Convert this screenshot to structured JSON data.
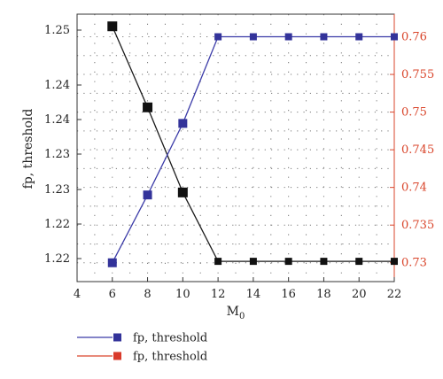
{
  "chart_data": {
    "type": "line",
    "xlabel": "M",
    "xlabel_sub": "0",
    "ylabel": "fp, threshold",
    "xlim": [
      4,
      22
    ],
    "x_ticks": [
      "4",
      "6",
      "8",
      "10",
      "12",
      "14",
      "16",
      "18",
      "20",
      "22"
    ],
    "y_left_ticks": [
      "1.22",
      "1.22",
      "1.23",
      "1.23",
      "1.24",
      "1.24",
      "1.25"
    ],
    "y_left_lim": [
      1.2175,
      1.2505
    ],
    "y_right_ticks": [
      "0.73",
      "0.735",
      "0.74",
      "0.745",
      "0.75",
      "0.755",
      "0.76"
    ],
    "y_right_lim": [
      0.7275,
      0.763
    ],
    "grid": true,
    "legend_position": "bottom-left",
    "series": [
      {
        "name": "fp, threshold",
        "axis": "left",
        "color": "#1a1a1a",
        "marker_color": "#111111",
        "x": [
          6,
          8,
          10,
          12,
          14,
          16,
          18,
          20,
          22
        ],
        "y": [
          1.249,
          1.239,
          1.2285,
          1.22,
          1.22,
          1.22,
          1.22,
          1.22,
          1.22
        ]
      },
      {
        "name": "fp, threshold",
        "axis": "right",
        "color": "#3b3ba8",
        "marker_color": "#33339a",
        "x": [
          6,
          8,
          10,
          12,
          14,
          16,
          18,
          20,
          22
        ],
        "y": [
          0.73,
          0.739,
          0.7485,
          0.76,
          0.76,
          0.76,
          0.76,
          0.76,
          0.76
        ]
      }
    ],
    "legend": [
      {
        "label": "fp, threshold",
        "line_color": "#3b3ba8",
        "marker_color": "#33339a"
      },
      {
        "label": "fp, threshold",
        "line_color": "#d9452b",
        "marker_color": "#d93a2b"
      }
    ],
    "right_axis_color": "#d9452b"
  }
}
